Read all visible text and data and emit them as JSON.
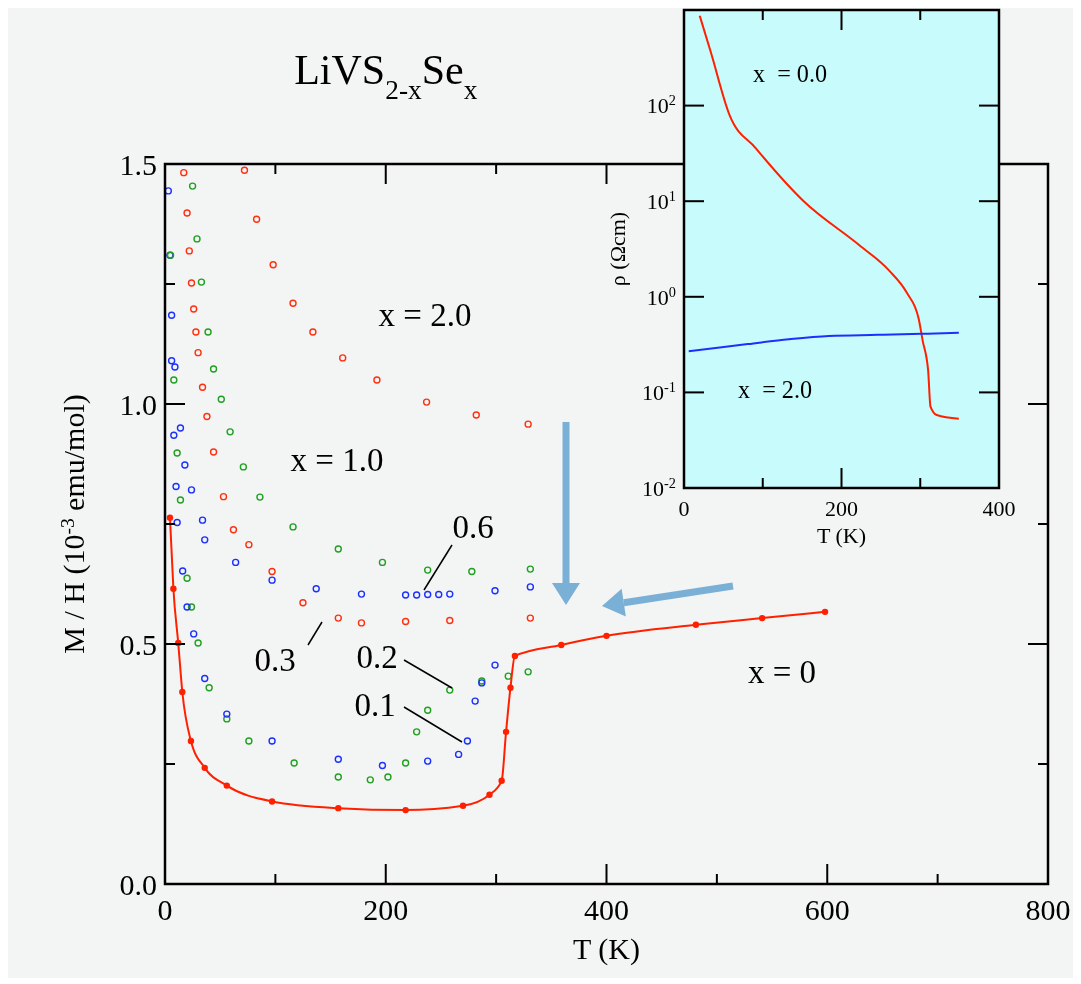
{
  "chart_data": [
    {
      "type": "scatter",
      "title": "LiVS$_{2-x}$Se$_{x}$",
      "xlabel": "T  (K)",
      "ylabel": "M / H  (10$^{-3}$ emu/mol)",
      "xlim": [
        0,
        800
      ],
      "xticks": [
        0,
        {
          "value": 100,
          "label": null
        },
        200,
        {
          "value": 300,
          "label": null
        },
        400,
        {
          "value": 500,
          "label": null
        },
        600,
        {
          "value": 700,
          "label": null
        },
        800
      ],
      "ylim": [
        0,
        1.5
      ],
      "yticks": [
        {
          "value": 0,
          "label": "0.0"
        },
        {
          "value": 0.25,
          "label": null
        },
        0.5,
        {
          "value": 0.75,
          "label": null
        },
        {
          "value": 1,
          "label": "1.0"
        },
        {
          "value": 1.25,
          "label": null
        },
        1.5
      ],
      "grid": false,
      "legend": false,
      "marker": "circle",
      "series": [
        {
          "type": "scatter",
          "name": "x = 2.0",
          "color": "#ff3010",
          "x": [
            72,
            83,
            98,
            116,
            134,
            161,
            192,
            237,
            282,
            329
          ],
          "values": [
            1.487,
            1.385,
            1.29,
            1.21,
            1.15,
            1.096,
            1.05,
            1.004,
            0.977,
            0.958
          ]
        },
        {
          "type": "scatter",
          "name": "x = 1.0",
          "color": "#20a020",
          "x": [
            25,
            29,
            33,
            39,
            44,
            51,
            59,
            71,
            86,
            116,
            157,
            197,
            238,
            278,
            331
          ],
          "values": [
            1.454,
            1.344,
            1.254,
            1.15,
            1.073,
            1.01,
            0.942,
            0.869,
            0.806,
            0.744,
            0.698,
            0.67,
            0.654,
            0.651,
            0.656
          ]
        },
        {
          "type": "scatter",
          "name": "0.6",
          "color": "#1a30ff",
          "x": [
            3,
            4.5,
            6,
            9,
            14,
            18,
            24,
            34,
            36,
            64,
            97,
            137,
            178,
            218,
            228,
            238,
            248,
            258,
            299,
            331
          ],
          "values": [
            1.444,
            1.31,
            1.185,
            1.077,
            0.95,
            0.873,
            0.821,
            0.758,
            0.717,
            0.67,
            0.633,
            0.615,
            0.604,
            0.602,
            0.602,
            0.603,
            0.603,
            0.604,
            0.611,
            0.619
          ]
        },
        {
          "type": "scatter",
          "name": "0.3",
          "color": "#ff3010",
          "x": [
            17,
            20,
            22,
            24,
            26,
            28,
            30,
            34,
            38,
            44,
            53,
            62,
            76,
            97,
            125,
            157,
            178,
            218,
            258,
            331
          ],
          "values": [
            1.482,
            1.398,
            1.319,
            1.252,
            1.198,
            1.15,
            1.107,
            1.035,
            0.974,
            0.9,
            0.807,
            0.738,
            0.707,
            0.651,
            0.586,
            0.554,
            0.544,
            0.547,
            0.549,
            0.554
          ]
        },
        {
          "type": "scatter",
          "name": "0.2",
          "color": "#20a020",
          "x": [
            5,
            8,
            11,
            14,
            20,
            24,
            30,
            40,
            56,
            76,
            117,
            157,
            186,
            202,
            218,
            228,
            238,
            258,
            287,
            311,
            329
          ],
          "values": [
            1.31,
            1.05,
            0.898,
            0.8,
            0.637,
            0.577,
            0.502,
            0.409,
            0.344,
            0.298,
            0.252,
            0.223,
            0.217,
            0.223,
            0.252,
            0.317,
            0.362,
            0.404,
            0.423,
            0.433,
            0.442
          ]
        },
        {
          "type": "scatter",
          "name": "0.1",
          "color": "#1a30ff",
          "x": [
            6,
            8,
            10,
            11,
            16,
            20,
            26,
            36,
            56,
            97,
            157,
            197,
            238,
            266,
            274,
            281,
            287,
            299
          ],
          "values": [
            1.09,
            0.935,
            0.828,
            0.753,
            0.652,
            0.577,
            0.521,
            0.428,
            0.354,
            0.298,
            0.26,
            0.247,
            0.256,
            0.27,
            0.298,
            0.381,
            0.419,
            0.456
          ]
        },
        {
          "type": "line",
          "name": "x = 0",
          "color": "#ff2000",
          "x": [
            4.5,
            7.6,
            12,
            15.7,
            23.5,
            36,
            56,
            97,
            157,
            218,
            270,
            294,
            305,
            309,
            313,
            317,
            359,
            400,
            481,
            541,
            598
          ],
          "values": [
            0.763,
            0.615,
            0.502,
            0.4,
            0.298,
            0.242,
            0.205,
            0.172,
            0.158,
            0.154,
            0.163,
            0.186,
            0.215,
            0.317,
            0.409,
            0.475,
            0.498,
            0.517,
            0.54,
            0.554,
            0.567
          ]
        }
      ]
    },
    {
      "type": "line",
      "xlabel": "T  (K)",
      "ylabel": "ρ  (Ωcm)",
      "log": true,
      "xlim": [
        0,
        400
      ],
      "xticks": [
        0,
        {
          "value": 100,
          "label": null
        },
        200,
        {
          "value": 300,
          "label": null
        },
        400
      ],
      "ylim": [
        0.01,
        1000
      ],
      "yticks": [
        {
          "value": 0.01,
          "label": "10$^{-2}$"
        },
        {
          "value": 0.1,
          "label": "10$^{-1}$"
        },
        {
          "value": 1,
          "label": "10$^{0}$"
        },
        {
          "value": 10,
          "label": "10$^{1}$"
        },
        {
          "value": 100,
          "label": "10$^{2}$"
        }
      ],
      "grid": false,
      "legend": false,
      "series": [
        {
          "name": "x  = 0.0",
          "color": "#ff2000",
          "x": [
            20,
            34,
            58,
            91,
            152,
            222,
            260,
            283,
            298,
            303,
            310,
            313,
            321,
            349
          ],
          "values": [
            870,
            363,
            79,
            36,
            10,
            3.5,
            1.9,
            1.1,
            0.59,
            0.35,
            0.17,
            0.071,
            0.058,
            0.053
          ]
        },
        {
          "name": "x  = 2.0",
          "color": "#1a30ff",
          "x": [
            6,
            81,
            133,
            184,
            246,
            302,
            349
          ],
          "values": [
            0.27,
            0.32,
            0.36,
            0.39,
            0.4,
            0.41,
            0.42
          ]
        }
      ]
    }
  ]
}
